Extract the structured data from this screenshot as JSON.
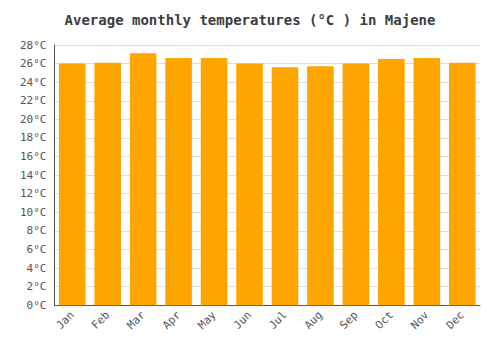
{
  "chart_data": {
    "type": "bar",
    "title": "Average monthly temperatures (°C ) in Majene",
    "categories": [
      "Jan",
      "Feb",
      "Mar",
      "Apr",
      "May",
      "Jun",
      "Jul",
      "Aug",
      "Sep",
      "Oct",
      "Nov",
      "Dec"
    ],
    "values": [
      26.0,
      26.1,
      27.1,
      26.6,
      26.6,
      26.0,
      25.6,
      25.7,
      26.0,
      26.5,
      26.6,
      26.1
    ],
    "color": "#FFA500",
    "ylim": [
      0,
      28
    ],
    "yticks": [
      {
        "value": 0,
        "label": "0°C"
      },
      {
        "value": 2,
        "label": "2°C"
      },
      {
        "value": 4,
        "label": "4°C"
      },
      {
        "value": 6,
        "label": "6°C"
      },
      {
        "value": 8,
        "label": "8°C"
      },
      {
        "value": 10,
        "label": "10°C"
      },
      {
        "value": 12,
        "label": "12°C"
      },
      {
        "value": 14,
        "label": "14°C"
      },
      {
        "value": 16,
        "label": "16°C"
      },
      {
        "value": 18,
        "label": "18°C"
      },
      {
        "value": 20,
        "label": "20°C"
      },
      {
        "value": 22,
        "label": "22°C"
      },
      {
        "value": 24,
        "label": "24°C"
      },
      {
        "value": 26,
        "label": "26°C"
      },
      {
        "value": 28,
        "label": "28°C"
      }
    ],
    "grid": true
  }
}
